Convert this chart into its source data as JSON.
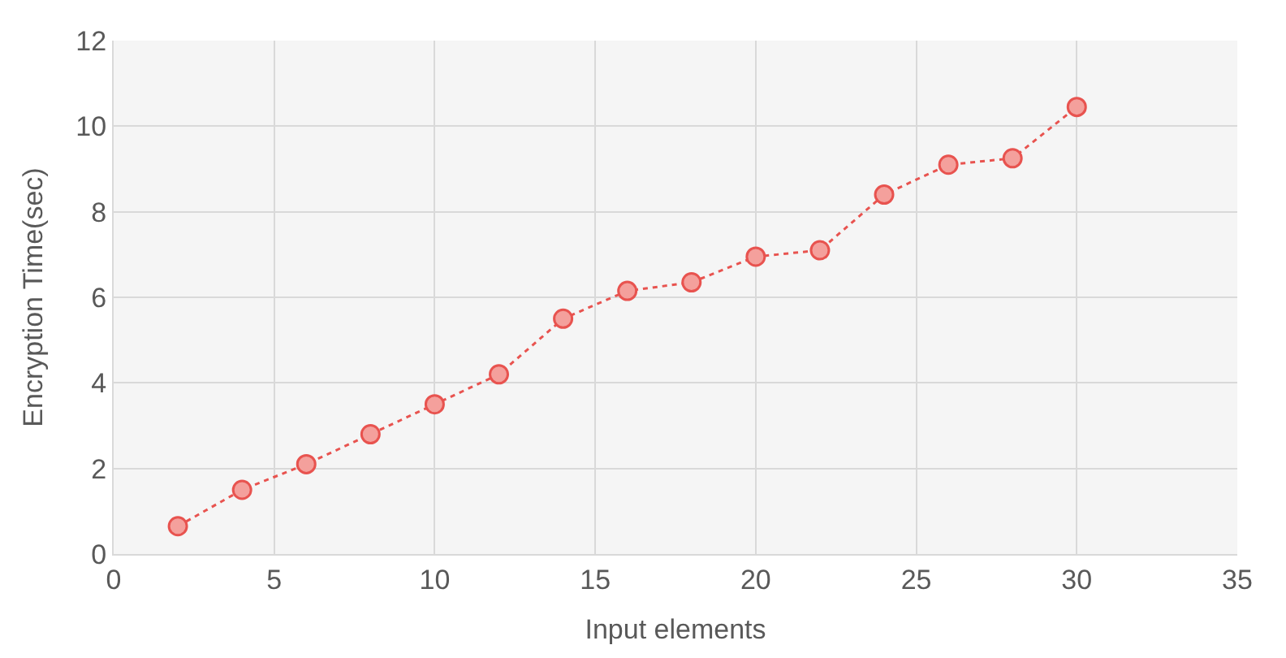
{
  "chart_data": {
    "type": "line",
    "xlabel": "Input elements",
    "ylabel": "Encryption Time(sec)",
    "x": [
      2,
      4,
      6,
      8,
      10,
      12,
      14,
      16,
      18,
      20,
      22,
      24,
      26,
      28,
      30
    ],
    "series": [
      {
        "color": "#e8534f",
        "values": [
          0.65,
          1.5,
          2.1,
          2.8,
          3.5,
          4.2,
          5.5,
          6.15,
          6.35,
          6.95,
          7.1,
          8.4,
          9.1,
          9.25,
          10.45
        ]
      }
    ],
    "xlim": [
      0,
      35
    ],
    "xticks": [
      0,
      5,
      10,
      15,
      20,
      25,
      30,
      35
    ],
    "ylim": [
      0,
      12
    ],
    "yticks": [
      0,
      2,
      4,
      6,
      8,
      10,
      12
    ],
    "grid": true,
    "marker": "circle",
    "line_style": "dotted",
    "legend": false
  }
}
